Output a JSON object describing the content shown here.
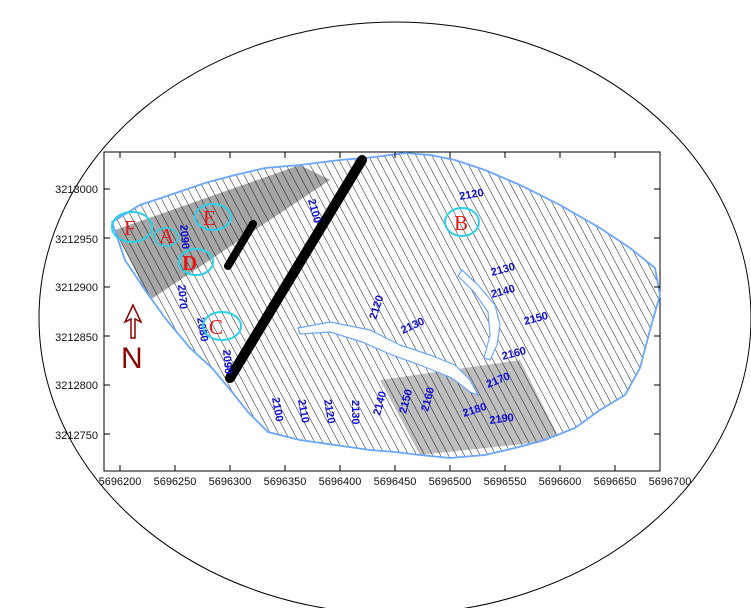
{
  "map": {
    "x_axis": {
      "tick_labels": [
        "5696200",
        "5696250",
        "5696300",
        "5696350",
        "5696400",
        "5696450",
        "5696500",
        "5696550",
        "5696600",
        "5696650",
        "5696700"
      ]
    },
    "y_axis": {
      "tick_labels": [
        "3213000",
        "3212950",
        "3212900",
        "3212850",
        "3212800",
        "3212750"
      ]
    },
    "contour_labels": [
      "2120",
      "2130",
      "2140",
      "2150",
      "2160",
      "2170",
      "2180",
      "2190",
      "2120",
      "2130",
      "2100",
      "2110",
      "2120",
      "2130",
      "2140",
      "2150",
      "2160",
      "2090",
      "2070",
      "2080",
      "2090",
      "2100"
    ],
    "sites": [
      "F",
      "E",
      "D",
      "C",
      "B",
      "A"
    ],
    "north_arrow": "N",
    "colors": {
      "boundary": "#6aa6ff",
      "contour": "#111111",
      "contour_label": "#1010d8",
      "site_letter": "#e01818",
      "site_circle": "#2ad0e8",
      "north_arrow": "#8b0000",
      "fault_line": "#000000"
    }
  }
}
